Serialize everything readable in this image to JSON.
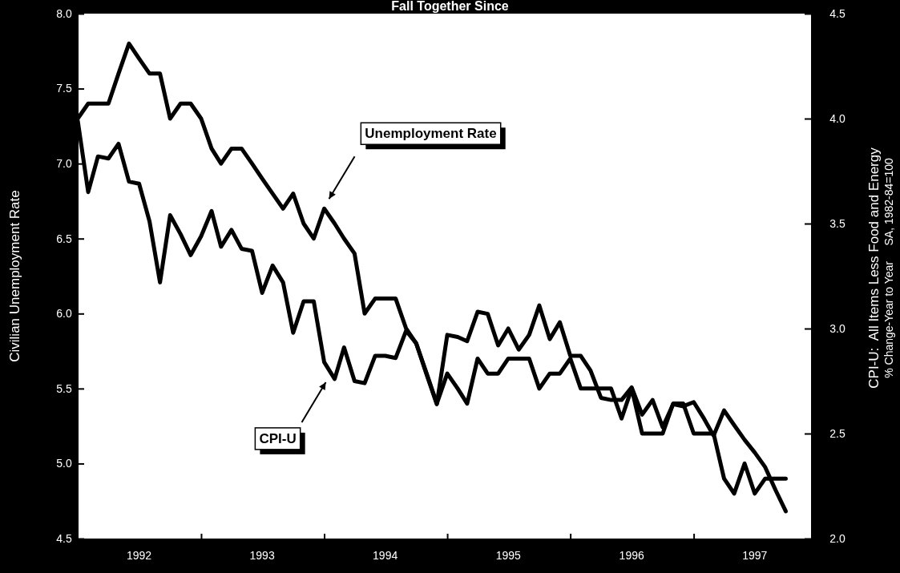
{
  "chart_data": {
    "type": "line",
    "title": "Fall Together Since",
    "ylabel": "Civilian Unemployment Rate",
    "y2label": "CPI-U:  All Items Less Food and Energy\n% Change-Year to Year     SA, 1982-84=100",
    "x": [
      "1992-01",
      "1992-02",
      "1992-03",
      "1992-04",
      "1992-05",
      "1992-06",
      "1992-07",
      "1992-08",
      "1992-09",
      "1992-10",
      "1992-11",
      "1992-12",
      "1993-01",
      "1993-02",
      "1993-03",
      "1993-04",
      "1993-05",
      "1993-06",
      "1993-07",
      "1993-08",
      "1993-09",
      "1993-10",
      "1993-11",
      "1993-12",
      "1994-01",
      "1994-02",
      "1994-03",
      "1994-04",
      "1994-05",
      "1994-06",
      "1994-07",
      "1994-08",
      "1994-09",
      "1994-10",
      "1994-11",
      "1994-12",
      "1995-01",
      "1995-02",
      "1995-03",
      "1995-04",
      "1995-05",
      "1995-06",
      "1995-07",
      "1995-08",
      "1995-09",
      "1995-10",
      "1995-11",
      "1995-12",
      "1996-01",
      "1996-02",
      "1996-03",
      "1996-04",
      "1996-05",
      "1996-06",
      "1996-07",
      "1996-08",
      "1996-09",
      "1996-10",
      "1996-11",
      "1996-12",
      "1997-01",
      "1997-02",
      "1997-03",
      "1997-04",
      "1997-05",
      "1997-06",
      "1997-07",
      "1997-08",
      "1997-09",
      "1997-10"
    ],
    "xlim": [
      "1992-01-01",
      "1997-12-15"
    ],
    "xticks": [
      {
        "value": "1992-07",
        "label": "1992"
      },
      {
        "value": "1993-01",
        "label": null
      },
      {
        "value": "1993-07",
        "label": "1993"
      },
      {
        "value": "1994-01",
        "label": null
      },
      {
        "value": "1994-07",
        "label": "1994"
      },
      {
        "value": "1995-01",
        "label": null
      },
      {
        "value": "1995-07",
        "label": "1995"
      },
      {
        "value": "1996-01",
        "label": null
      },
      {
        "value": "1996-07",
        "label": "1996"
      },
      {
        "value": "1997-01",
        "label": null
      },
      {
        "value": "1997-07",
        "label": "1997"
      }
    ],
    "ylim": [
      4.5,
      8.0
    ],
    "yticks": [
      {
        "value": 4.5,
        "label": "4.5"
      },
      {
        "value": 5,
        "label": "5.0"
      },
      {
        "value": 5.5,
        "label": "5.5"
      },
      {
        "value": 6,
        "label": "6.0"
      },
      {
        "value": 6.5,
        "label": "6.5"
      },
      {
        "value": 7,
        "label": "7.0"
      },
      {
        "value": 7.5,
        "label": "7.5"
      },
      {
        "value": 8,
        "label": "8.0"
      }
    ],
    "y2lim": [
      2.0,
      4.5
    ],
    "y2ticks": [
      {
        "value": 2,
        "label": "2.0"
      },
      {
        "value": 2.5,
        "label": "2.5"
      },
      {
        "value": 3,
        "label": "3.0"
      },
      {
        "value": 3.5,
        "label": "3.5"
      },
      {
        "value": 4,
        "label": "4.0"
      },
      {
        "value": 4.5,
        "label": "4.5"
      }
    ],
    "grid": false,
    "marker": "none",
    "line_style": "solid",
    "series": [
      {
        "name": "Unemployment Rate",
        "color": "#000000",
        "values": [
          7.3,
          7.4,
          7.4,
          7.4,
          7.6,
          7.8,
          7.7,
          7.6,
          7.6,
          7.3,
          7.4,
          7.4,
          7.3,
          7.1,
          7.0,
          7.1,
          7.1,
          7.0,
          6.9,
          6.8,
          6.7,
          6.8,
          6.6,
          6.5,
          6.7,
          6.6,
          6.5,
          6.4,
          6.0,
          6.1,
          6.1,
          6.1,
          5.9,
          5.8,
          5.6,
          5.4,
          5.6,
          5.5,
          5.4,
          5.7,
          5.6,
          5.6,
          5.7,
          5.7,
          5.7,
          5.5,
          5.6,
          5.6,
          5.7,
          5.5,
          5.5,
          5.5,
          5.5,
          5.3,
          5.5,
          5.2,
          5.2,
          5.2,
          5.4,
          5.4,
          5.2,
          5.2,
          5.2,
          4.9,
          4.8,
          5.0,
          4.8,
          4.9,
          4.9,
          4.9
        ]
      },
      {
        "name": "CPI-U",
        "color": "#000000",
        "axis": "y2",
        "values": [
          3.99,
          3.65,
          3.82,
          3.81,
          3.88,
          3.7,
          3.69,
          3.51,
          3.22,
          3.54,
          3.45,
          3.35,
          3.44,
          3.56,
          3.39,
          3.47,
          3.38,
          3.37,
          3.17,
          3.3,
          3.22,
          2.98,
          3.13,
          3.13,
          2.84,
          2.76,
          2.91,
          2.75,
          2.74,
          2.87,
          2.87,
          2.86,
          2.99,
          2.93,
          2.78,
          2.64,
          2.97,
          2.96,
          2.94,
          3.08,
          3.07,
          2.92,
          3.0,
          2.9,
          2.97,
          3.11,
          2.95,
          3.03,
          2.87,
          2.87,
          2.8,
          2.67,
          2.66,
          2.66,
          2.72,
          2.59,
          2.66,
          2.53,
          2.64,
          2.63,
          2.65,
          2.57,
          2.49,
          2.61,
          2.54,
          2.47,
          2.41,
          2.34,
          2.23,
          2.13
        ]
      }
    ]
  }
}
